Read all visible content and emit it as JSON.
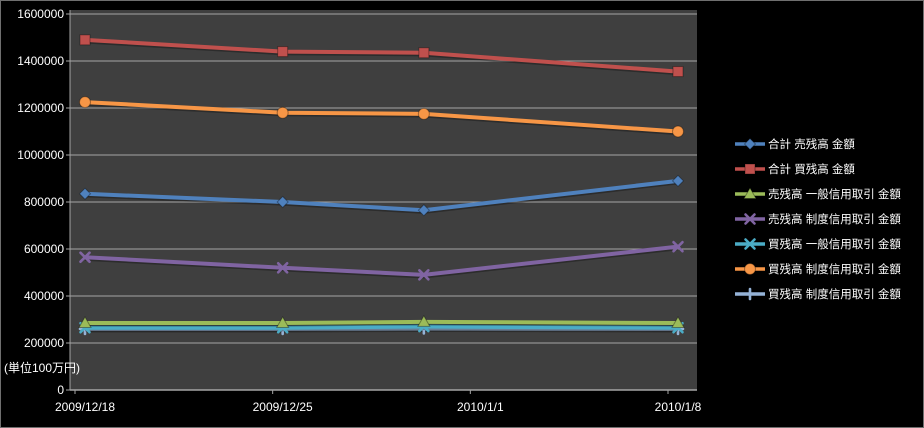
{
  "chart_data": {
    "type": "line",
    "title": "",
    "unit_label": "(単位100万円)",
    "grid": true,
    "legend_position": "right",
    "colors": {
      "background_outer": "#000000",
      "background_plot": "#3F3F3F",
      "gridline": "#A6A6A6",
      "axis": "#A6A6A6",
      "text": "#FFFFFF"
    },
    "x_axis": {
      "type": "date",
      "tick_labels": [
        "2009/12/18",
        "2009/12/25",
        "2010/1/1",
        "2010/1/8"
      ],
      "tick_day_offsets": [
        0,
        7,
        14,
        21
      ],
      "range_days": [
        0,
        21
      ]
    },
    "y_axis": {
      "min": 0,
      "max": 1600000,
      "tick_interval": 200000,
      "tick_labels": [
        "0",
        "200000",
        "400000",
        "600000",
        "800000",
        "1000000",
        "1200000",
        "1400000",
        "1600000"
      ]
    },
    "point_dates": [
      "2009/12/18",
      "2009/12/25",
      "2009/12/30",
      "2010/1/8"
    ],
    "point_day_offsets": [
      0,
      7,
      12,
      21
    ],
    "series": [
      {
        "name": "合計 売残高 金額",
        "color": "#4F81BD",
        "marker": "diamond",
        "values": [
          835000,
          800000,
          765000,
          890000
        ]
      },
      {
        "name": "合計 買残高 金額",
        "color": "#C0504D",
        "marker": "square",
        "values": [
          1490000,
          1440000,
          1435000,
          1355000
        ]
      },
      {
        "name": "売残高 一般信用取引 金額",
        "color": "#9BBB59",
        "marker": "triangle",
        "values": [
          285000,
          285000,
          290000,
          285000
        ]
      },
      {
        "name": "売残高 制度信用取引 金額",
        "color": "#8064A2",
        "marker": "x",
        "values": [
          565000,
          520000,
          490000,
          610000
        ]
      },
      {
        "name": "買残高 一般信用取引 金額",
        "color": "#4BACC6",
        "marker": "x",
        "values": [
          265000,
          265000,
          270000,
          265000
        ]
      },
      {
        "name": "買残高 制度信用取引 金額",
        "color": "#F79646",
        "marker": "circle",
        "values": [
          1225000,
          1180000,
          1175000,
          1100000
        ]
      },
      {
        "name": "買残高 制度信用取引 金額",
        "color": "#95B3D7",
        "marker": "plus",
        "values": [
          260000,
          260000,
          262000,
          260000
        ]
      }
    ],
    "render_order": [
      6,
      4,
      2,
      3,
      0,
      5,
      1
    ]
  }
}
